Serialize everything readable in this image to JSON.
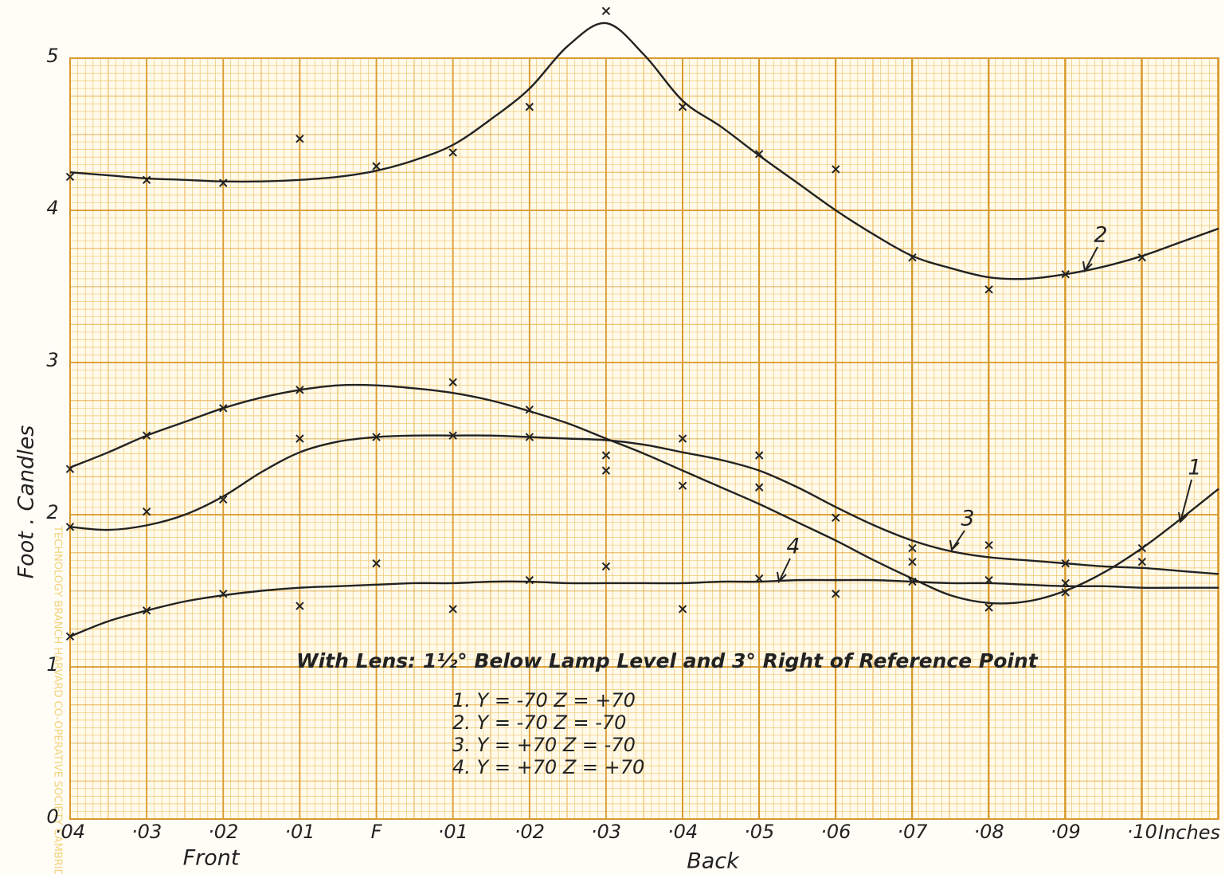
{
  "chart_data": {
    "type": "line",
    "ylabel": "Foot . Candles",
    "xlabel_left": "Front",
    "xlabel_right": "Back",
    "x_unit": "Inches",
    "note": "With Lens: 1½° Below Lamp Level and 3° Right of Reference Point",
    "legend_lines": [
      "1.  Y = -70    Z = +70",
      "2.  Y = -70    Z = -70",
      "3.  Y = +70    Z = -70",
      "4.  Y = +70    Z = +70"
    ],
    "watermark": "TECHNOLOGY BRANCH  HARVARD CO-OPERATIVE SOCIETY  CAMBRIDGE",
    "xlim": [
      -0.04,
      0.11
    ],
    "ylim": [
      0,
      5
    ],
    "xticks": [
      {
        "value": -0.04,
        "label": "·04"
      },
      {
        "value": -0.03,
        "label": "·03"
      },
      {
        "value": -0.02,
        "label": "·02"
      },
      {
        "value": -0.01,
        "label": "·01"
      },
      {
        "value": 0,
        "label": "F"
      },
      {
        "value": 0.01,
        "label": "·01"
      },
      {
        "value": 0.02,
        "label": "·02"
      },
      {
        "value": 0.03,
        "label": "·03"
      },
      {
        "value": 0.04,
        "label": "·04"
      },
      {
        "value": 0.05,
        "label": "·05"
      },
      {
        "value": 0.06,
        "label": "·06"
      },
      {
        "value": 0.07,
        "label": "·07"
      },
      {
        "value": 0.08,
        "label": "·08"
      },
      {
        "value": 0.09,
        "label": "·09"
      },
      {
        "value": 0.1,
        "label": "·10"
      }
    ],
    "yticks": [
      0,
      1,
      2,
      3,
      4,
      5
    ],
    "grid": true,
    "x": [
      -0.04,
      -0.03,
      -0.02,
      -0.01,
      0,
      0.01,
      0.02,
      0.03,
      0.04,
      0.05,
      0.06,
      0.07,
      0.08,
      0.09,
      0.1
    ],
    "curve_x": [
      -0.04,
      -0.035,
      -0.03,
      -0.025,
      -0.02,
      -0.015,
      -0.01,
      -0.005,
      0,
      0.005,
      0.01,
      0.015,
      0.02,
      0.025,
      0.03,
      0.035,
      0.04,
      0.045,
      0.05,
      0.055,
      0.06,
      0.065,
      0.07,
      0.075,
      0.08,
      0.085,
      0.09,
      0.095,
      0.1,
      0.105,
      0.11
    ],
    "series": [
      {
        "name": "1",
        "color": "#222222",
        "values": [
          2.3,
          2.52,
          2.7,
          2.82,
          null,
          2.87,
          2.69,
          2.39,
          2.19,
          2.18,
          null,
          1.69,
          1.39,
          1.49,
          1.78
        ],
        "curve_values": [
          2.31,
          2.41,
          2.52,
          2.61,
          2.7,
          2.77,
          2.82,
          2.85,
          2.85,
          2.83,
          2.8,
          2.75,
          2.68,
          2.6,
          2.5,
          2.4,
          2.29,
          2.18,
          2.07,
          1.95,
          1.83,
          1.7,
          1.58,
          1.47,
          1.42,
          1.43,
          1.5,
          1.62,
          1.78,
          1.97,
          2.17
        ]
      },
      {
        "name": "2",
        "color": "#222222",
        "values": [
          4.22,
          4.2,
          4.18,
          4.47,
          4.29,
          4.38,
          4.68,
          5.31,
          4.68,
          4.37,
          4.27,
          3.69,
          3.48,
          3.58,
          3.69
        ],
        "curve_values": [
          4.25,
          4.23,
          4.21,
          4.2,
          4.19,
          4.19,
          4.2,
          4.22,
          4.26,
          4.33,
          4.43,
          4.6,
          4.8,
          5.08,
          5.23,
          5.02,
          4.72,
          4.55,
          4.36,
          4.18,
          4.0,
          3.84,
          3.7,
          3.62,
          3.56,
          3.55,
          3.58,
          3.63,
          3.7,
          3.79,
          3.88
        ]
      },
      {
        "name": "3",
        "color": "#222222",
        "values": [
          1.92,
          2.02,
          2.1,
          2.5,
          2.51,
          2.52,
          2.51,
          2.29,
          2.5,
          2.39,
          1.98,
          1.78,
          1.8,
          1.68,
          1.69
        ],
        "curve_values": [
          1.92,
          1.9,
          1.93,
          2.0,
          2.12,
          2.28,
          2.41,
          2.48,
          2.51,
          2.52,
          2.52,
          2.52,
          2.51,
          2.5,
          2.49,
          2.46,
          2.41,
          2.36,
          2.29,
          2.18,
          2.05,
          1.93,
          1.83,
          1.76,
          1.72,
          1.7,
          1.68,
          1.66,
          1.65,
          1.63,
          1.61
        ]
      },
      {
        "name": "4",
        "color": "#222222",
        "values": [
          1.2,
          1.37,
          1.48,
          1.4,
          1.68,
          1.38,
          1.57,
          1.66,
          1.38,
          1.58,
          1.48,
          1.56,
          1.57,
          1.55,
          null
        ],
        "curve_values": [
          1.2,
          1.3,
          1.37,
          1.43,
          1.47,
          1.5,
          1.52,
          1.53,
          1.54,
          1.55,
          1.55,
          1.56,
          1.56,
          1.55,
          1.55,
          1.55,
          1.55,
          1.56,
          1.56,
          1.57,
          1.57,
          1.57,
          1.56,
          1.55,
          1.55,
          1.54,
          1.53,
          1.53,
          1.52,
          1.52,
          1.52
        ]
      }
    ]
  }
}
